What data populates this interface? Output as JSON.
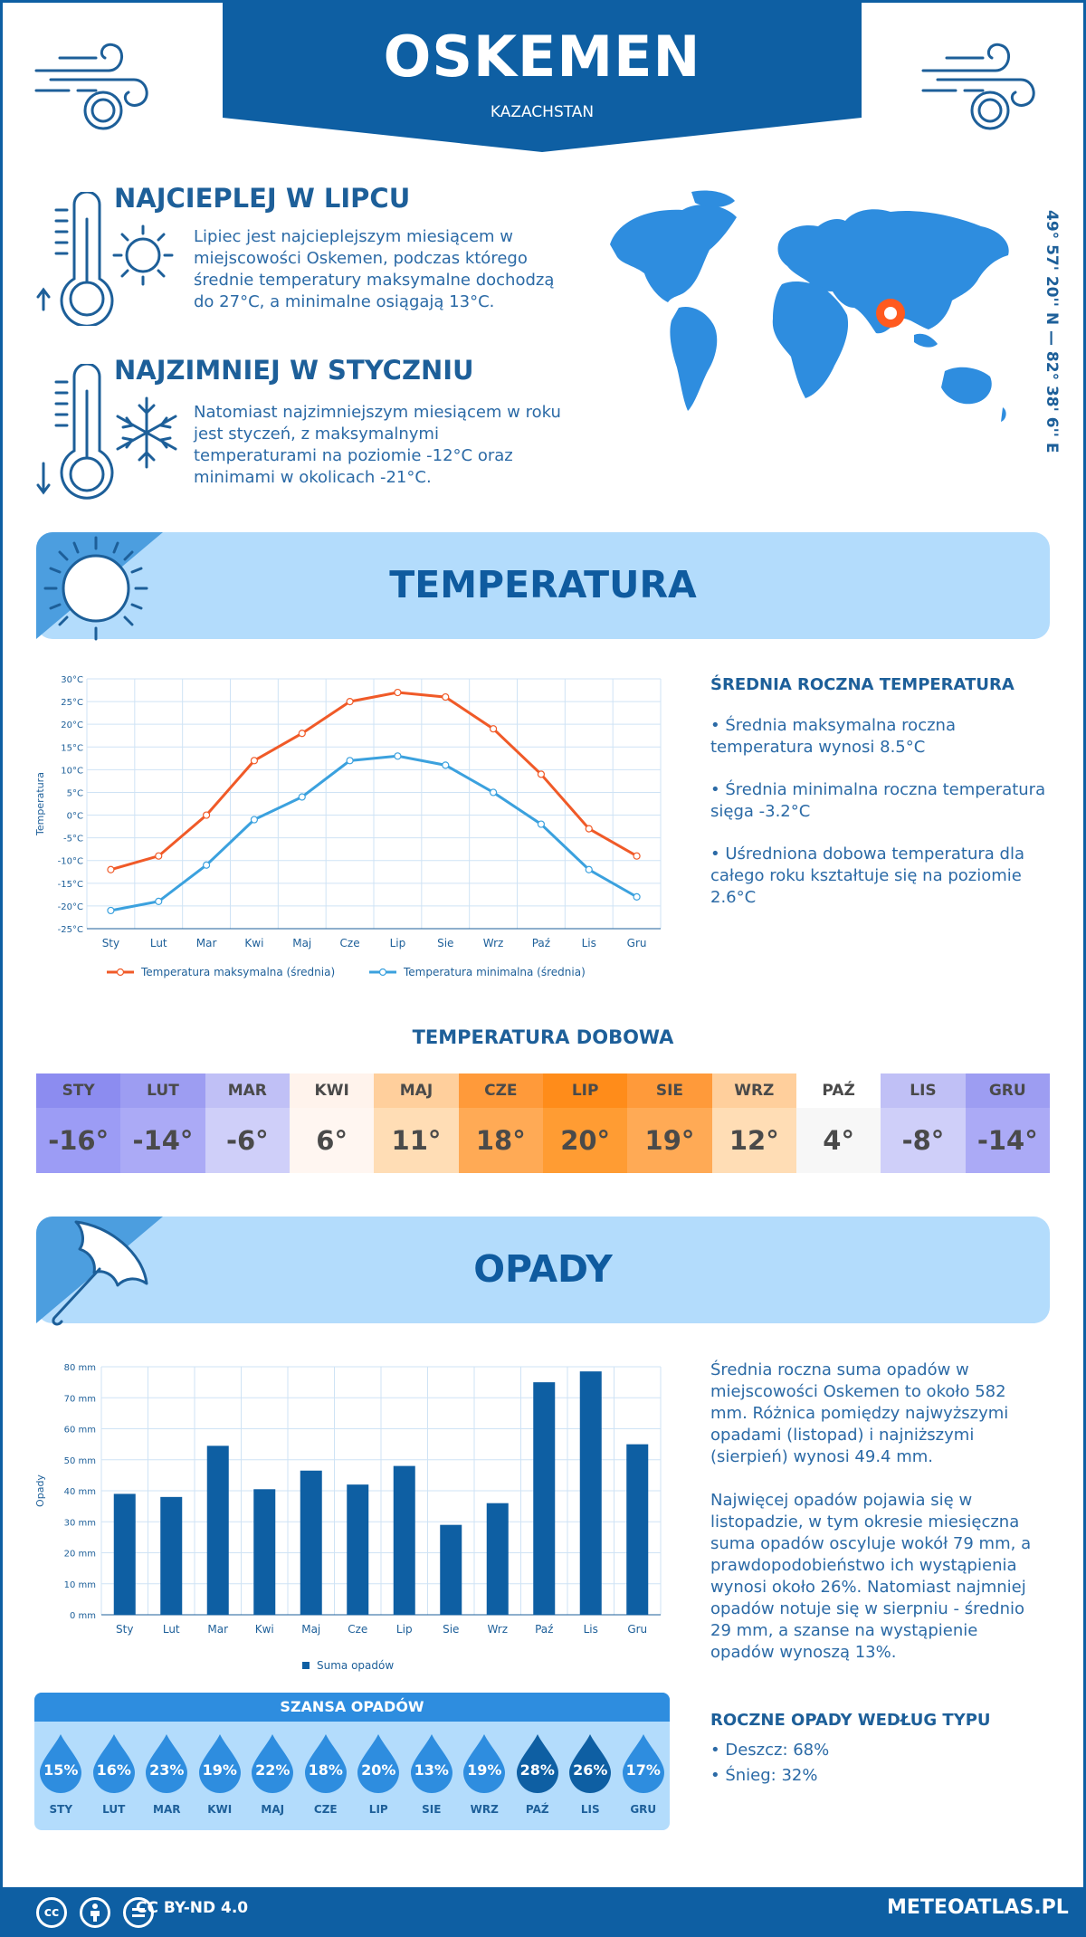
{
  "header": {
    "city": "OSKEMEN",
    "country": "KAZACHSTAN"
  },
  "warmest": {
    "title": "NAJCIEPLEJ W LIPCU",
    "text": "Lipiec jest najcieplejszym miesiącem w miejscowości Oskemen, podczas którego średnie temperatury maksymalne dochodzą do 27°C, a minimalne osiągają 13°C."
  },
  "coldest": {
    "title": "NAJZIMNIEJ W STYCZNIU",
    "text": "Natomiast najzimniejszym miesiącem w roku jest styczeń, z maksymalnymi temperaturami na poziomie -12°C oraz minimami w okolicach -21°C."
  },
  "coordinates": "49° 57' 20'' N — 82° 38' 6'' E",
  "temperature_section": {
    "title": "TEMPERATURA",
    "side_title": "ŚREDNIA ROCZNA TEMPERATURA",
    "bullets": [
      "• Średnia maksymalna roczna temperatura wynosi 8.5°C",
      "• Średnia minimalna roczna temperatura sięga -3.2°C",
      "• Uśredniona dobowa temperatura dla całego roku kształtuje się na poziomie 2.6°C"
    ]
  },
  "daily_temp": {
    "title": "TEMPERATURA DOBOWA",
    "months": [
      "STY",
      "LUT",
      "MAR",
      "KWI",
      "MAJ",
      "CZE",
      "LIP",
      "SIE",
      "WRZ",
      "PAŹ",
      "LIS",
      "GRU"
    ],
    "values": [
      "-16°",
      "-14°",
      "-6°",
      "6°",
      "11°",
      "18°",
      "20°",
      "19°",
      "12°",
      "4°",
      "-8°",
      "-14°"
    ],
    "head_colors": [
      "#8c8cf0",
      "#9d9df2",
      "#c0c0f6",
      "#fff3ec",
      "#ffcf9c",
      "#ff9a3a",
      "#ff8c1a",
      "#ff9a3a",
      "#ffcf9c",
      "#ffffff",
      "#c0c0f6",
      "#9d9df2"
    ],
    "value_colors": [
      "#9c9cf5",
      "#abaaf6",
      "#cfcff9",
      "#fff6f1",
      "#ffddb5",
      "#ffaa55",
      "#ff9c33",
      "#ffaa55",
      "#ffddb5",
      "#f7f7f7",
      "#cfcff9",
      "#abaaf6"
    ]
  },
  "precip_section": {
    "title": "OPADY",
    "para1": "Średnia roczna suma opadów w miejscowości Oskemen to około 582 mm. Różnica pomiędzy najwyższymi opadami (listopad) i najniższymi (sierpień) wynosi 49.4 mm.",
    "para2": "Najwięcej opadów pojawia się w listopadzie, w tym okresie miesięczna suma opadów oscyluje wokół 79 mm, a prawdopodobieństwo ich wystąpienia wynosi około 26%. Natomiast najmniej opadów notuje się w sierpniu - średnio 29 mm, a szanse na wystąpienie opadów wynoszą 13%.",
    "type_title": "ROCZNE OPADY WEDŁUG TYPU",
    "types": [
      "• Deszcz: 68%",
      "• Śnieg: 32%"
    ]
  },
  "chance": {
    "title": "SZANSA OPADÓW",
    "months": [
      "STY",
      "LUT",
      "MAR",
      "KWI",
      "MAJ",
      "CZE",
      "LIP",
      "SIE",
      "WRZ",
      "PAŹ",
      "LIS",
      "GRU"
    ],
    "values": [
      "15%",
      "16%",
      "23%",
      "19%",
      "22%",
      "18%",
      "20%",
      "13%",
      "19%",
      "28%",
      "26%",
      "17%"
    ],
    "dark_index": [
      9,
      10
    ]
  },
  "footer": {
    "license": "CC BY-ND 4.0",
    "site": "METEOATLAS.PL",
    "cc": "cc"
  },
  "chart_data": [
    {
      "type": "line",
      "categories": [
        "Sty",
        "Lut",
        "Mar",
        "Kwi",
        "Maj",
        "Cze",
        "Lip",
        "Sie",
        "Wrz",
        "Paź",
        "Lis",
        "Gru"
      ],
      "series": [
        {
          "name": "Temperatura maksymalna (średnia)",
          "values": [
            -12,
            -9,
            0,
            12,
            18,
            25,
            27,
            26,
            19,
            9,
            -3,
            -9
          ],
          "color": "#f05a28"
        },
        {
          "name": "Temperatura minimalna (średnia)",
          "values": [
            -21,
            -19,
            -11,
            -1,
            4,
            12,
            13,
            11,
            5,
            -2,
            -12,
            -18
          ],
          "color": "#3ba1de"
        }
      ],
      "ylabel": "Temperatura",
      "ylim": [
        -25,
        30
      ],
      "yticks": [
        "30°C",
        "25°C",
        "20°C",
        "15°C",
        "10°C",
        "5°C",
        "0°C",
        "-5°C",
        "-10°C",
        "-15°C",
        "-20°C",
        "-25°C"
      ],
      "grid": true,
      "legend": "bottom"
    },
    {
      "type": "bar",
      "categories": [
        "Sty",
        "Lut",
        "Mar",
        "Kwi",
        "Maj",
        "Cze",
        "Lip",
        "Sie",
        "Wrz",
        "Paź",
        "Lis",
        "Gru"
      ],
      "series": [
        {
          "name": "Suma opadów",
          "values": [
            39,
            38,
            54.5,
            40.5,
            46.5,
            42,
            48,
            29,
            36,
            75,
            78.5,
            55
          ],
          "color": "#0e5fa3"
        }
      ],
      "ylabel": "Opady",
      "ylim": [
        0,
        80
      ],
      "yticks": [
        "80 mm",
        "70 mm",
        "60 mm",
        "50 mm",
        "40 mm",
        "30 mm",
        "20 mm",
        "10 mm",
        "0 mm"
      ],
      "grid": true,
      "legend": "bottom"
    }
  ]
}
